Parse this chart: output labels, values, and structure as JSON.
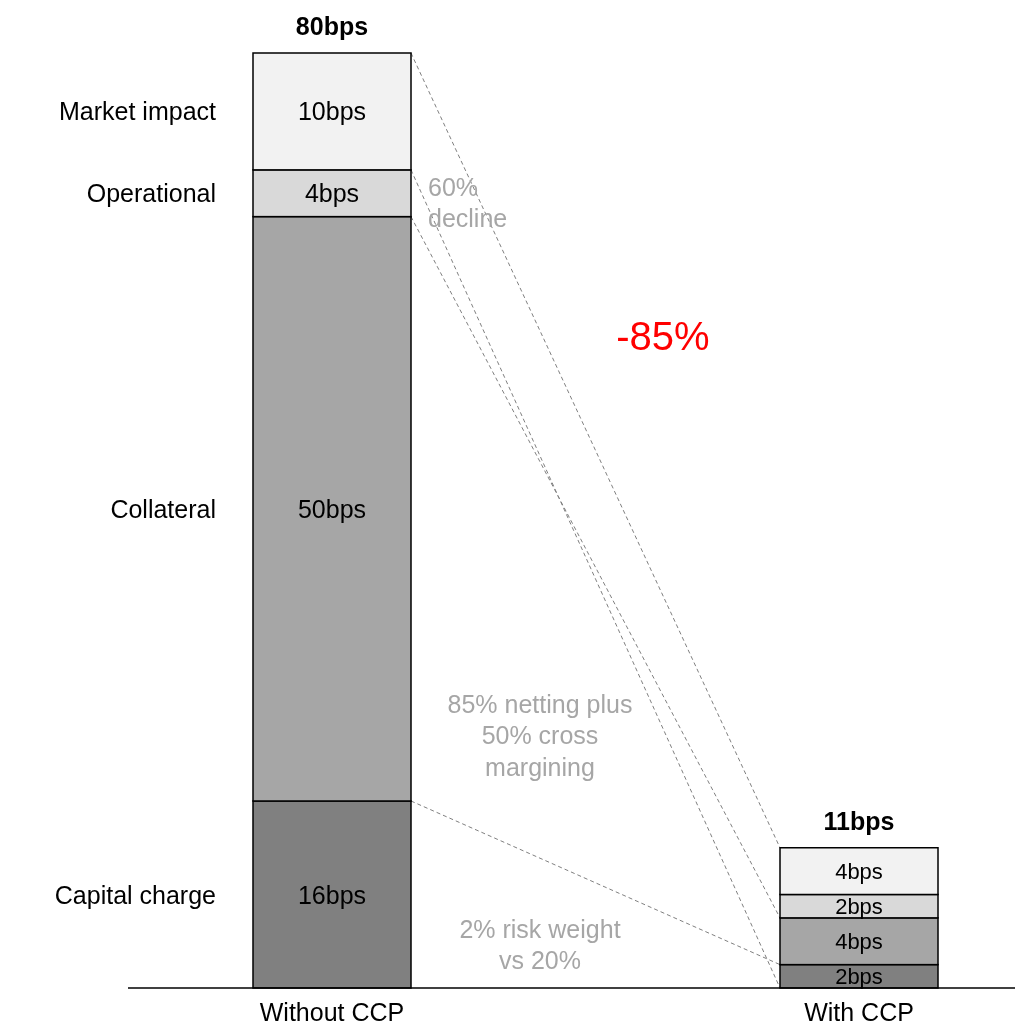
{
  "chart_data": {
    "type": "bar",
    "stacked": true,
    "categories": [
      "Without CCP",
      "With CCP"
    ],
    "legend": false,
    "series": [
      {
        "name": "Capital charge",
        "color": "#808080",
        "values": [
          16,
          2
        ],
        "value_labels": [
          "16bps",
          "2bps"
        ]
      },
      {
        "name": "Collateral",
        "color": "#a6a6a6",
        "values": [
          50,
          4
        ],
        "value_labels": [
          "50bps",
          "4bps"
        ]
      },
      {
        "name": "Operational",
        "color": "#d9d9d9",
        "values": [
          4,
          2
        ],
        "value_labels": [
          "4bps",
          "2bps"
        ]
      },
      {
        "name": "Market impact",
        "color": "#f2f2f2",
        "values": [
          10,
          4
        ],
        "value_labels": [
          "10bps",
          "4bps"
        ]
      }
    ],
    "totals": [
      "80bps",
      "11bps"
    ],
    "annotations": [
      "60% decline",
      "-85%",
      "85% netting plus 50% cross margining",
      "2% risk weight vs 20%"
    ]
  }
}
